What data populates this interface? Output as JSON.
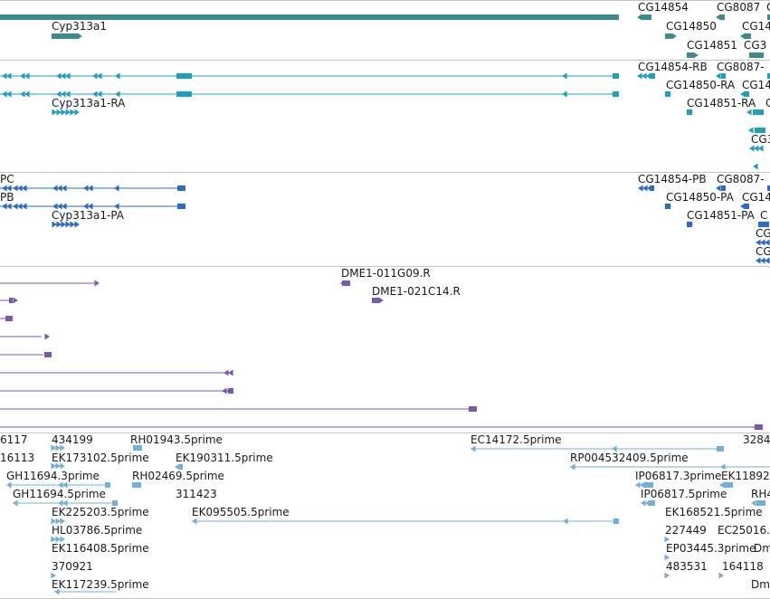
{
  "colors": {
    "gene": "#3c8c8e",
    "mrna": "#1ca0c0",
    "protein": "#2a6ad0",
    "est": "#7a58b0",
    "cdna": "#70b0dc",
    "border": "#c4c4c4",
    "text": "#1a1a1a"
  },
  "tracks": [
    {
      "name": "gene-track",
      "color_key": "gene",
      "labels": [
        "Cyp313a1",
        "CG14854",
        "CG8087",
        "CG",
        "CG14850",
        "CG14",
        "CG14851",
        "CG3"
      ]
    },
    {
      "name": "mrna-track",
      "color_key": "mrna",
      "labels": [
        "CG14854-RB",
        "CG8087-",
        "CG14850-RA",
        "CG14",
        "Cyp313a1-RA",
        "CG14851-RA",
        "C",
        "CG3"
      ]
    },
    {
      "name": "protein-track",
      "color_key": "protein",
      "labels": [
        "PC",
        "PB",
        "CG14854-PB",
        "CG8087-",
        "CG14850-PA",
        "CG14",
        "Cyp313a1-PA",
        "CG14851-PA",
        "C",
        "CG",
        "CG"
      ]
    },
    {
      "name": "est-track",
      "color_key": "est",
      "labels": [
        "DME1-011G09.R",
        "DME1-021C14.R"
      ]
    },
    {
      "name": "cdna-track",
      "color_key": "cdna",
      "labels": [
        "6117",
        "434199",
        "RH01943.5prime",
        "EC14172.5prime",
        "3284",
        "16113",
        "EK173102.5prime",
        "EK190311.5prime",
        "RP004532409.5prime",
        "GH11694.3prime",
        "RH02469.5prime",
        "IP06817.3prime",
        "EK11892",
        "GH11694.5prime",
        "311423",
        "IP06817.5prime",
        "RH4",
        "EK225203.5prime",
        "EK095505.5prime",
        "EK168521.5prime",
        "HL03786.5prime",
        "227449",
        "EC25016.",
        "EK116408.5prime",
        "EP03445.3prime",
        "Dm",
        "370921",
        "483531",
        "164118",
        "EK117239.5prime",
        "Dm"
      ]
    }
  ]
}
